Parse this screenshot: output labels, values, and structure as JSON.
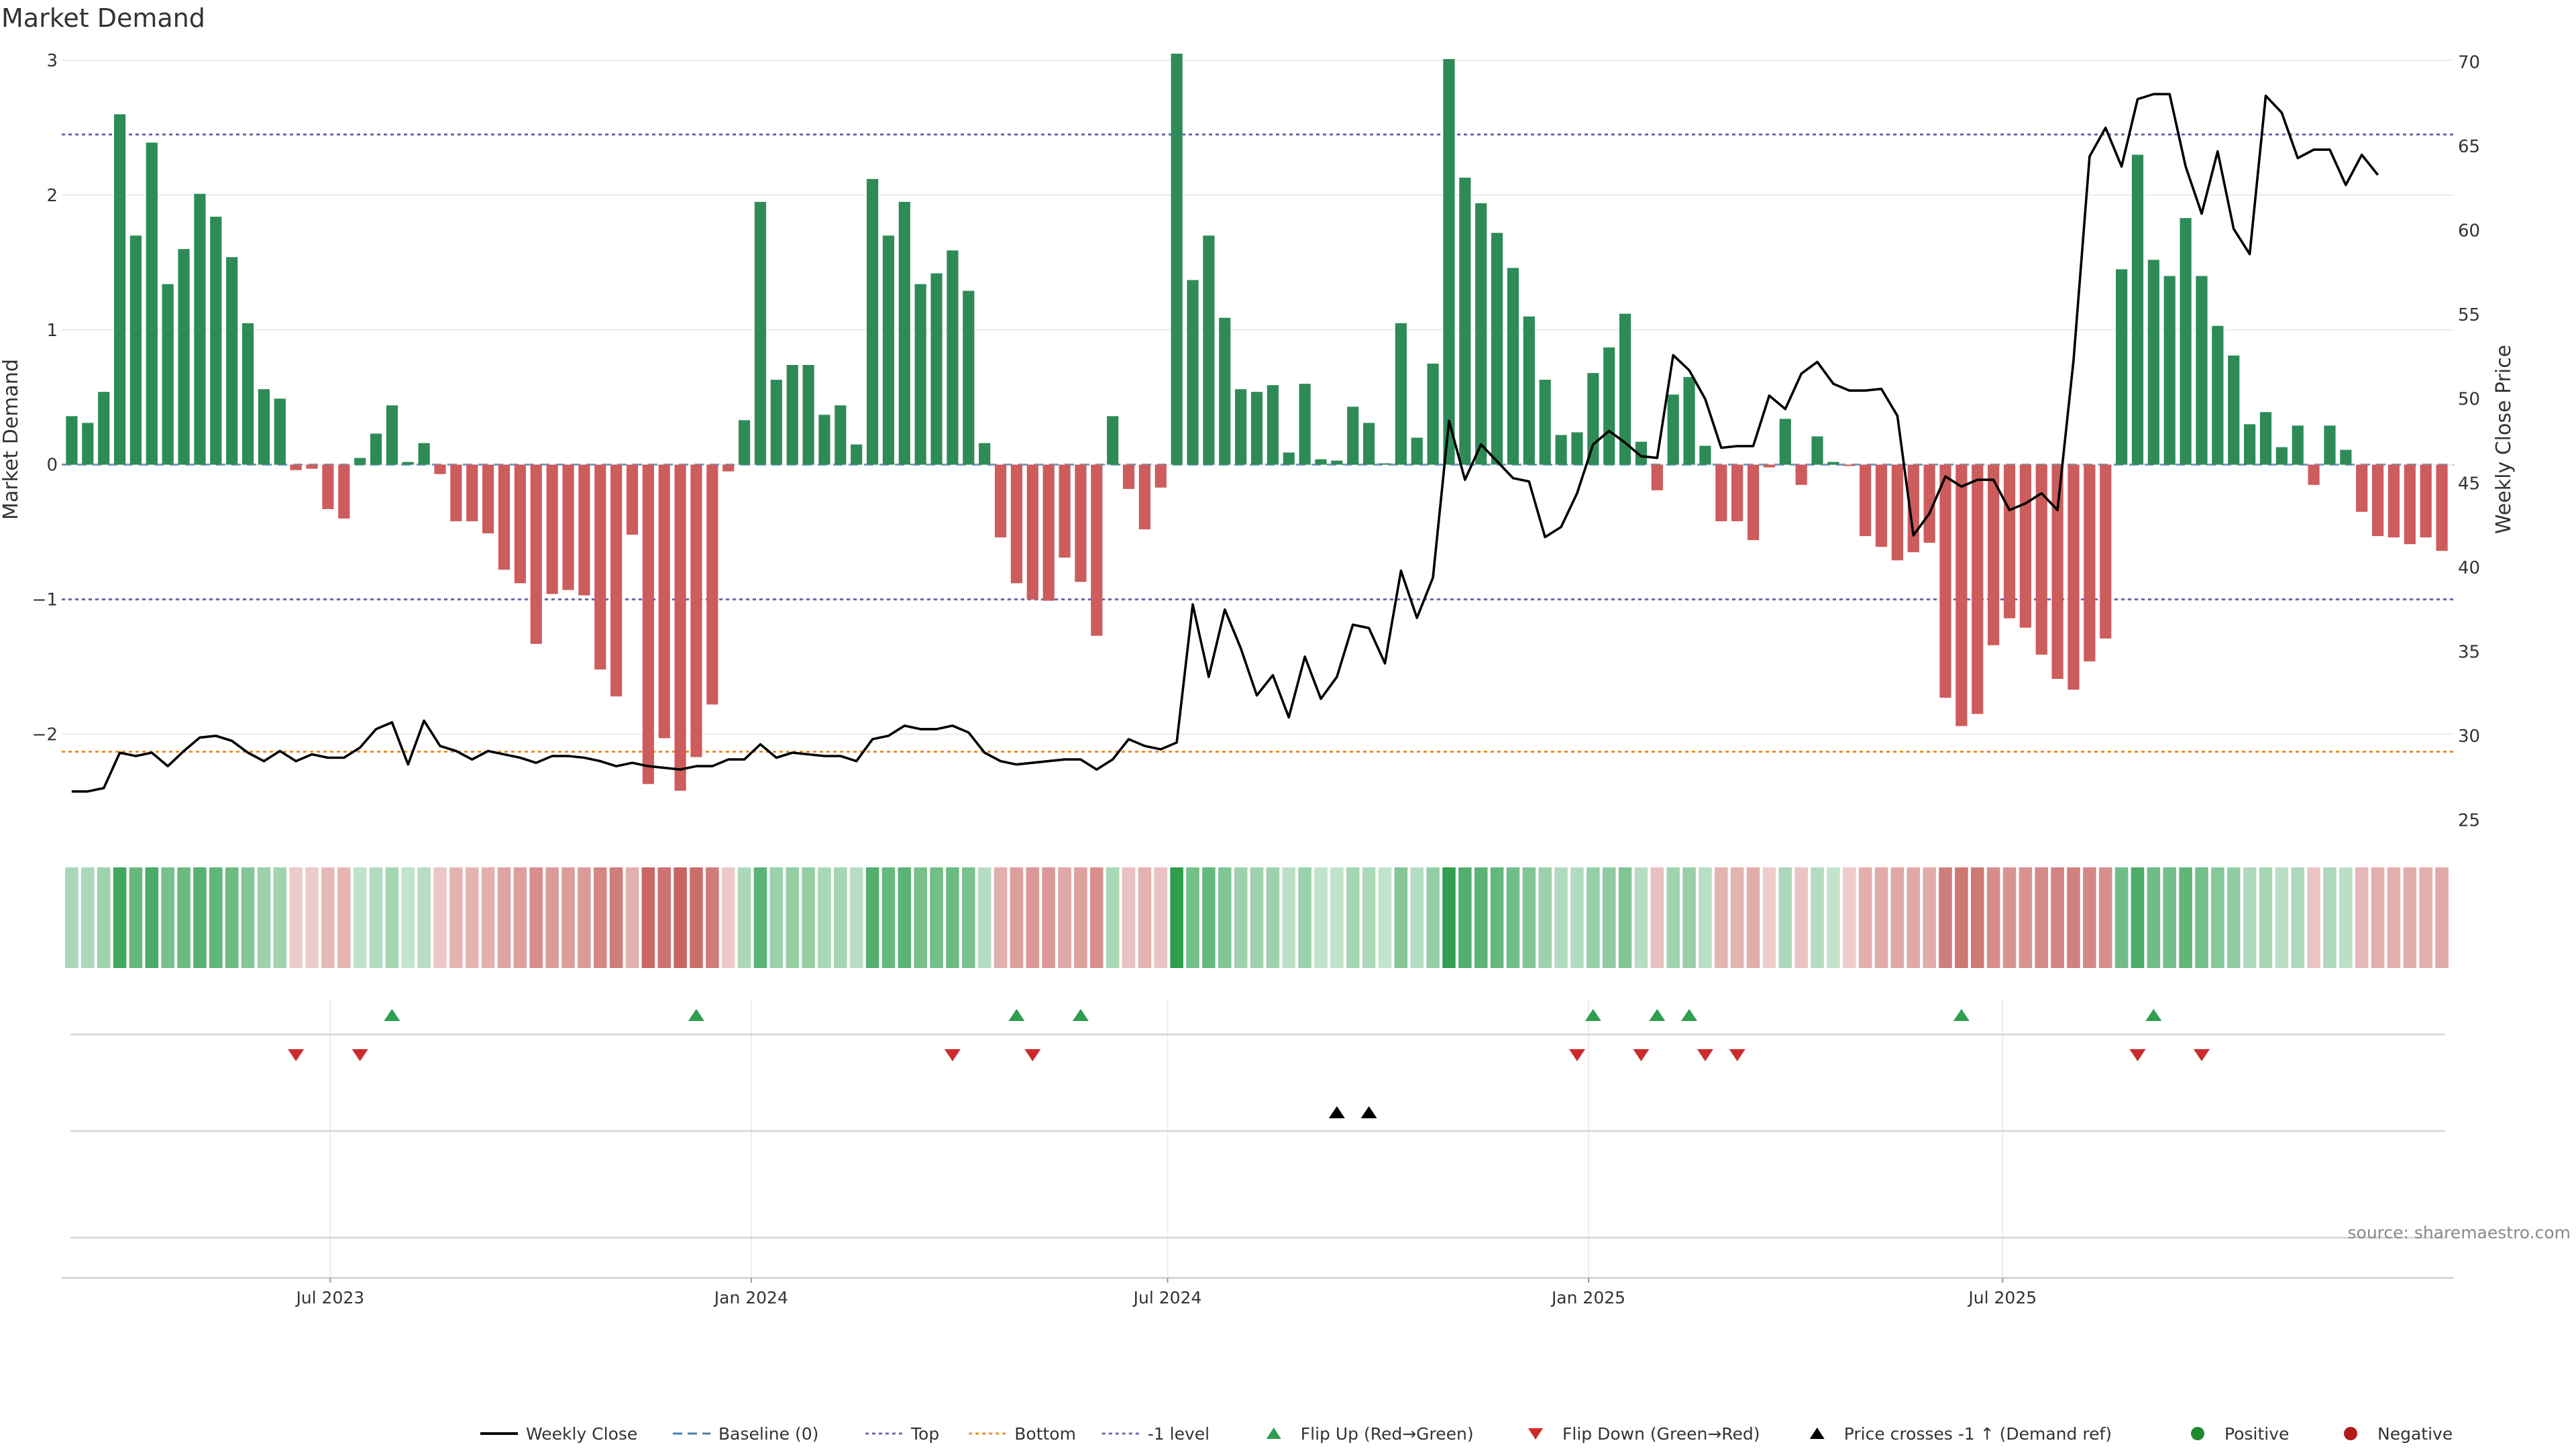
{
  "chart_data": {
    "type": "bar",
    "title": "Market Demand",
    "ylabel_left": "Market Demand",
    "ylabel_right": "Weekly Close Price",
    "ylim_left": [
      -2.7,
      3.05
    ],
    "ylim_right": [
      24.5,
      70.5
    ],
    "yticks_left": [
      -2,
      -1,
      0,
      1,
      2,
      3
    ],
    "yticks_left_labels": [
      "−2",
      "−1",
      "0",
      "1",
      "2",
      "3"
    ],
    "yticks_right": [
      25,
      30,
      35,
      40,
      45,
      50,
      55,
      60,
      65,
      70
    ],
    "yticks_right_labels": [
      "25",
      "30",
      "35",
      "40",
      "45",
      "50",
      "55",
      "60",
      "65",
      "70"
    ],
    "x_start": "2023-03-10",
    "x_step_days": 7,
    "x_tick_labels": [
      {
        "date": "2023-07-01",
        "label": "Jul 2023"
      },
      {
        "date": "2024-01-01",
        "label": "Jan 2024"
      },
      {
        "date": "2024-07-01",
        "label": "Jul 2024"
      },
      {
        "date": "2025-01-01",
        "label": "Jan 2025"
      },
      {
        "date": "2025-07-01",
        "label": "Jul 2025"
      }
    ],
    "reference_lines": [
      {
        "name": "Top",
        "value": 2.45,
        "color": "#6b6bb0",
        "style": "dotted"
      },
      {
        "name": "Bottom",
        "value": -2.13,
        "color": "#e8902a",
        "style": "dotted"
      },
      {
        "name": "-1 level",
        "value": -1,
        "color": "#6b6bb0",
        "style": "dotted"
      },
      {
        "name": "Baseline (0)",
        "value": 0,
        "color": "#4a7fb0",
        "style": "dashed"
      }
    ],
    "demand": [
      0.36,
      0.31,
      0.54,
      2.6,
      1.7,
      2.39,
      1.34,
      1.6,
      2.01,
      1.84,
      1.54,
      1.05,
      0.56,
      0.49,
      -0.04,
      -0.03,
      -0.33,
      -0.4,
      0.05,
      0.23,
      0.44,
      0.02,
      0.16,
      -0.07,
      -0.42,
      -0.42,
      -0.51,
      -0.78,
      -0.88,
      -1.33,
      -0.96,
      -0.93,
      -0.97,
      -1.52,
      -1.72,
      -0.52,
      -2.37,
      -2.03,
      -2.42,
      -2.17,
      -1.78,
      -0.05,
      0.33,
      1.95,
      0.63,
      0.74,
      0.74,
      0.37,
      0.44,
      0.15,
      2.12,
      1.7,
      1.95,
      1.34,
      1.42,
      1.59,
      1.29,
      0.16,
      -0.54,
      -0.88,
      -1.0,
      -1.01,
      -0.69,
      -0.87,
      -1.27,
      0.36,
      -0.18,
      -0.48,
      -0.17,
      3.05,
      1.37,
      1.7,
      1.09,
      0.56,
      0.54,
      0.59,
      0.09,
      0.6,
      0.04,
      0.03,
      0.43,
      0.31,
      0.01,
      1.05,
      0.2,
      0.75,
      3.01,
      2.13,
      1.94,
      1.72,
      1.46,
      1.1,
      0.63,
      0.22,
      0.24,
      0.68,
      0.87,
      1.12,
      0.17,
      -0.19,
      0.52,
      0.65,
      0.14,
      -0.42,
      -0.42,
      -0.56,
      -0.02,
      0.34,
      -0.15,
      0.21,
      0.02,
      -0.01,
      -0.53,
      -0.61,
      -0.71,
      -0.65,
      -0.58,
      -1.73,
      -1.94,
      -1.85,
      -1.34,
      -1.14,
      -1.21,
      -1.41,
      -1.59,
      -1.67,
      -1.46,
      -1.29,
      1.45,
      2.3,
      1.52,
      1.4,
      1.83,
      1.4,
      1.03,
      0.81,
      0.3,
      0.39,
      0.13,
      0.29,
      -0.15,
      0.29,
      0.11,
      -0.35,
      -0.53,
      -0.54,
      -0.59,
      -0.54,
      -0.64
    ],
    "weekly_close": [
      26.7,
      26.7,
      26.9,
      29.0,
      28.8,
      29.0,
      28.2,
      29.1,
      29.9,
      30.0,
      29.7,
      29.0,
      28.5,
      29.1,
      28.5,
      28.9,
      28.7,
      28.7,
      29.3,
      30.4,
      30.8,
      28.3,
      30.9,
      29.4,
      29.1,
      28.6,
      29.1,
      28.9,
      28.7,
      28.4,
      28.8,
      28.8,
      28.7,
      28.5,
      28.2,
      28.4,
      28.2,
      28.1,
      28.0,
      28.2,
      28.2,
      28.6,
      28.6,
      29.5,
      28.7,
      29.0,
      28.9,
      28.8,
      28.8,
      28.5,
      29.8,
      30.0,
      30.6,
      30.4,
      30.4,
      30.6,
      30.2,
      29.0,
      28.5,
      28.3,
      28.4,
      28.5,
      28.6,
      28.6,
      28.0,
      28.6,
      29.8,
      29.4,
      29.2,
      29.6,
      37.8,
      33.5,
      37.5,
      35.2,
      32.4,
      33.6,
      31.1,
      34.7,
      32.2,
      33.5,
      36.6,
      36.4,
      34.3,
      39.8,
      37.0,
      39.4,
      48.7,
      45.2,
      47.3,
      46.3,
      45.3,
      45.1,
      41.8,
      42.4,
      44.4,
      47.3,
      48.1,
      47.4,
      46.6,
      46.5,
      52.6,
      51.7,
      50.0,
      47.1,
      47.2,
      47.2,
      50.2,
      49.4,
      51.5,
      52.2,
      50.9,
      50.5,
      50.5,
      50.6,
      49.0,
      41.9,
      43.2,
      45.4,
      44.8,
      45.2,
      45.2,
      43.4,
      43.8,
      44.4,
      43.4,
      52.3,
      64.4,
      66.1,
      63.8,
      67.8,
      68.1,
      68.1,
      63.8,
      61.0,
      64.7,
      60.1,
      58.6,
      68.0,
      67.0,
      64.3,
      64.8,
      64.8,
      62.7,
      64.5,
      63.3
    ],
    "flip_up": [
      "2023-07-28",
      "2023-12-08",
      "2024-04-26",
      "2024-05-24",
      "2025-01-03",
      "2025-01-31",
      "2025-02-14",
      "2025-06-13",
      "2025-09-05"
    ],
    "flip_down": [
      "2023-06-16",
      "2023-07-14",
      "2024-03-29",
      "2024-05-03",
      "2024-12-27",
      "2025-01-24",
      "2025-02-21",
      "2025-03-07",
      "2025-08-29",
      "2025-09-26"
    ],
    "price_cross": [
      "2024-09-13",
      "2024-09-27"
    ],
    "legend": [
      {
        "label": "Weekly Close",
        "kind": "line",
        "color": "#000000"
      },
      {
        "label": "Baseline (0)",
        "kind": "dashed",
        "color": "#4a7fb0"
      },
      {
        "label": "Top",
        "kind": "dotted",
        "color": "#6b6bb0"
      },
      {
        "label": "Bottom",
        "kind": "dotted",
        "color": "#e8902a"
      },
      {
        "label": "-1 level",
        "kind": "dotted",
        "color": "#6b6bb0"
      },
      {
        "label": "Flip Up (Red→Green)",
        "kind": "tri-up",
        "color": "#2e9e4f"
      },
      {
        "label": "Flip Down (Green→Red)",
        "kind": "tri-down",
        "color": "#cc2b2b"
      },
      {
        "label": "Price crosses -1 ↑ (Demand ref)",
        "kind": "tri-up",
        "color": "#000000"
      },
      {
        "label": "Positive",
        "kind": "dot",
        "color": "#1e8a2e"
      },
      {
        "label": "Negative",
        "kind": "dot",
        "color": "#b01c1c"
      }
    ],
    "legend_position": "bottom-center",
    "source_note": "source: sharemaestro.com",
    "colors": {
      "positive": "#2e8b57",
      "negative": "#cd5c5c",
      "price": "#000000"
    }
  }
}
